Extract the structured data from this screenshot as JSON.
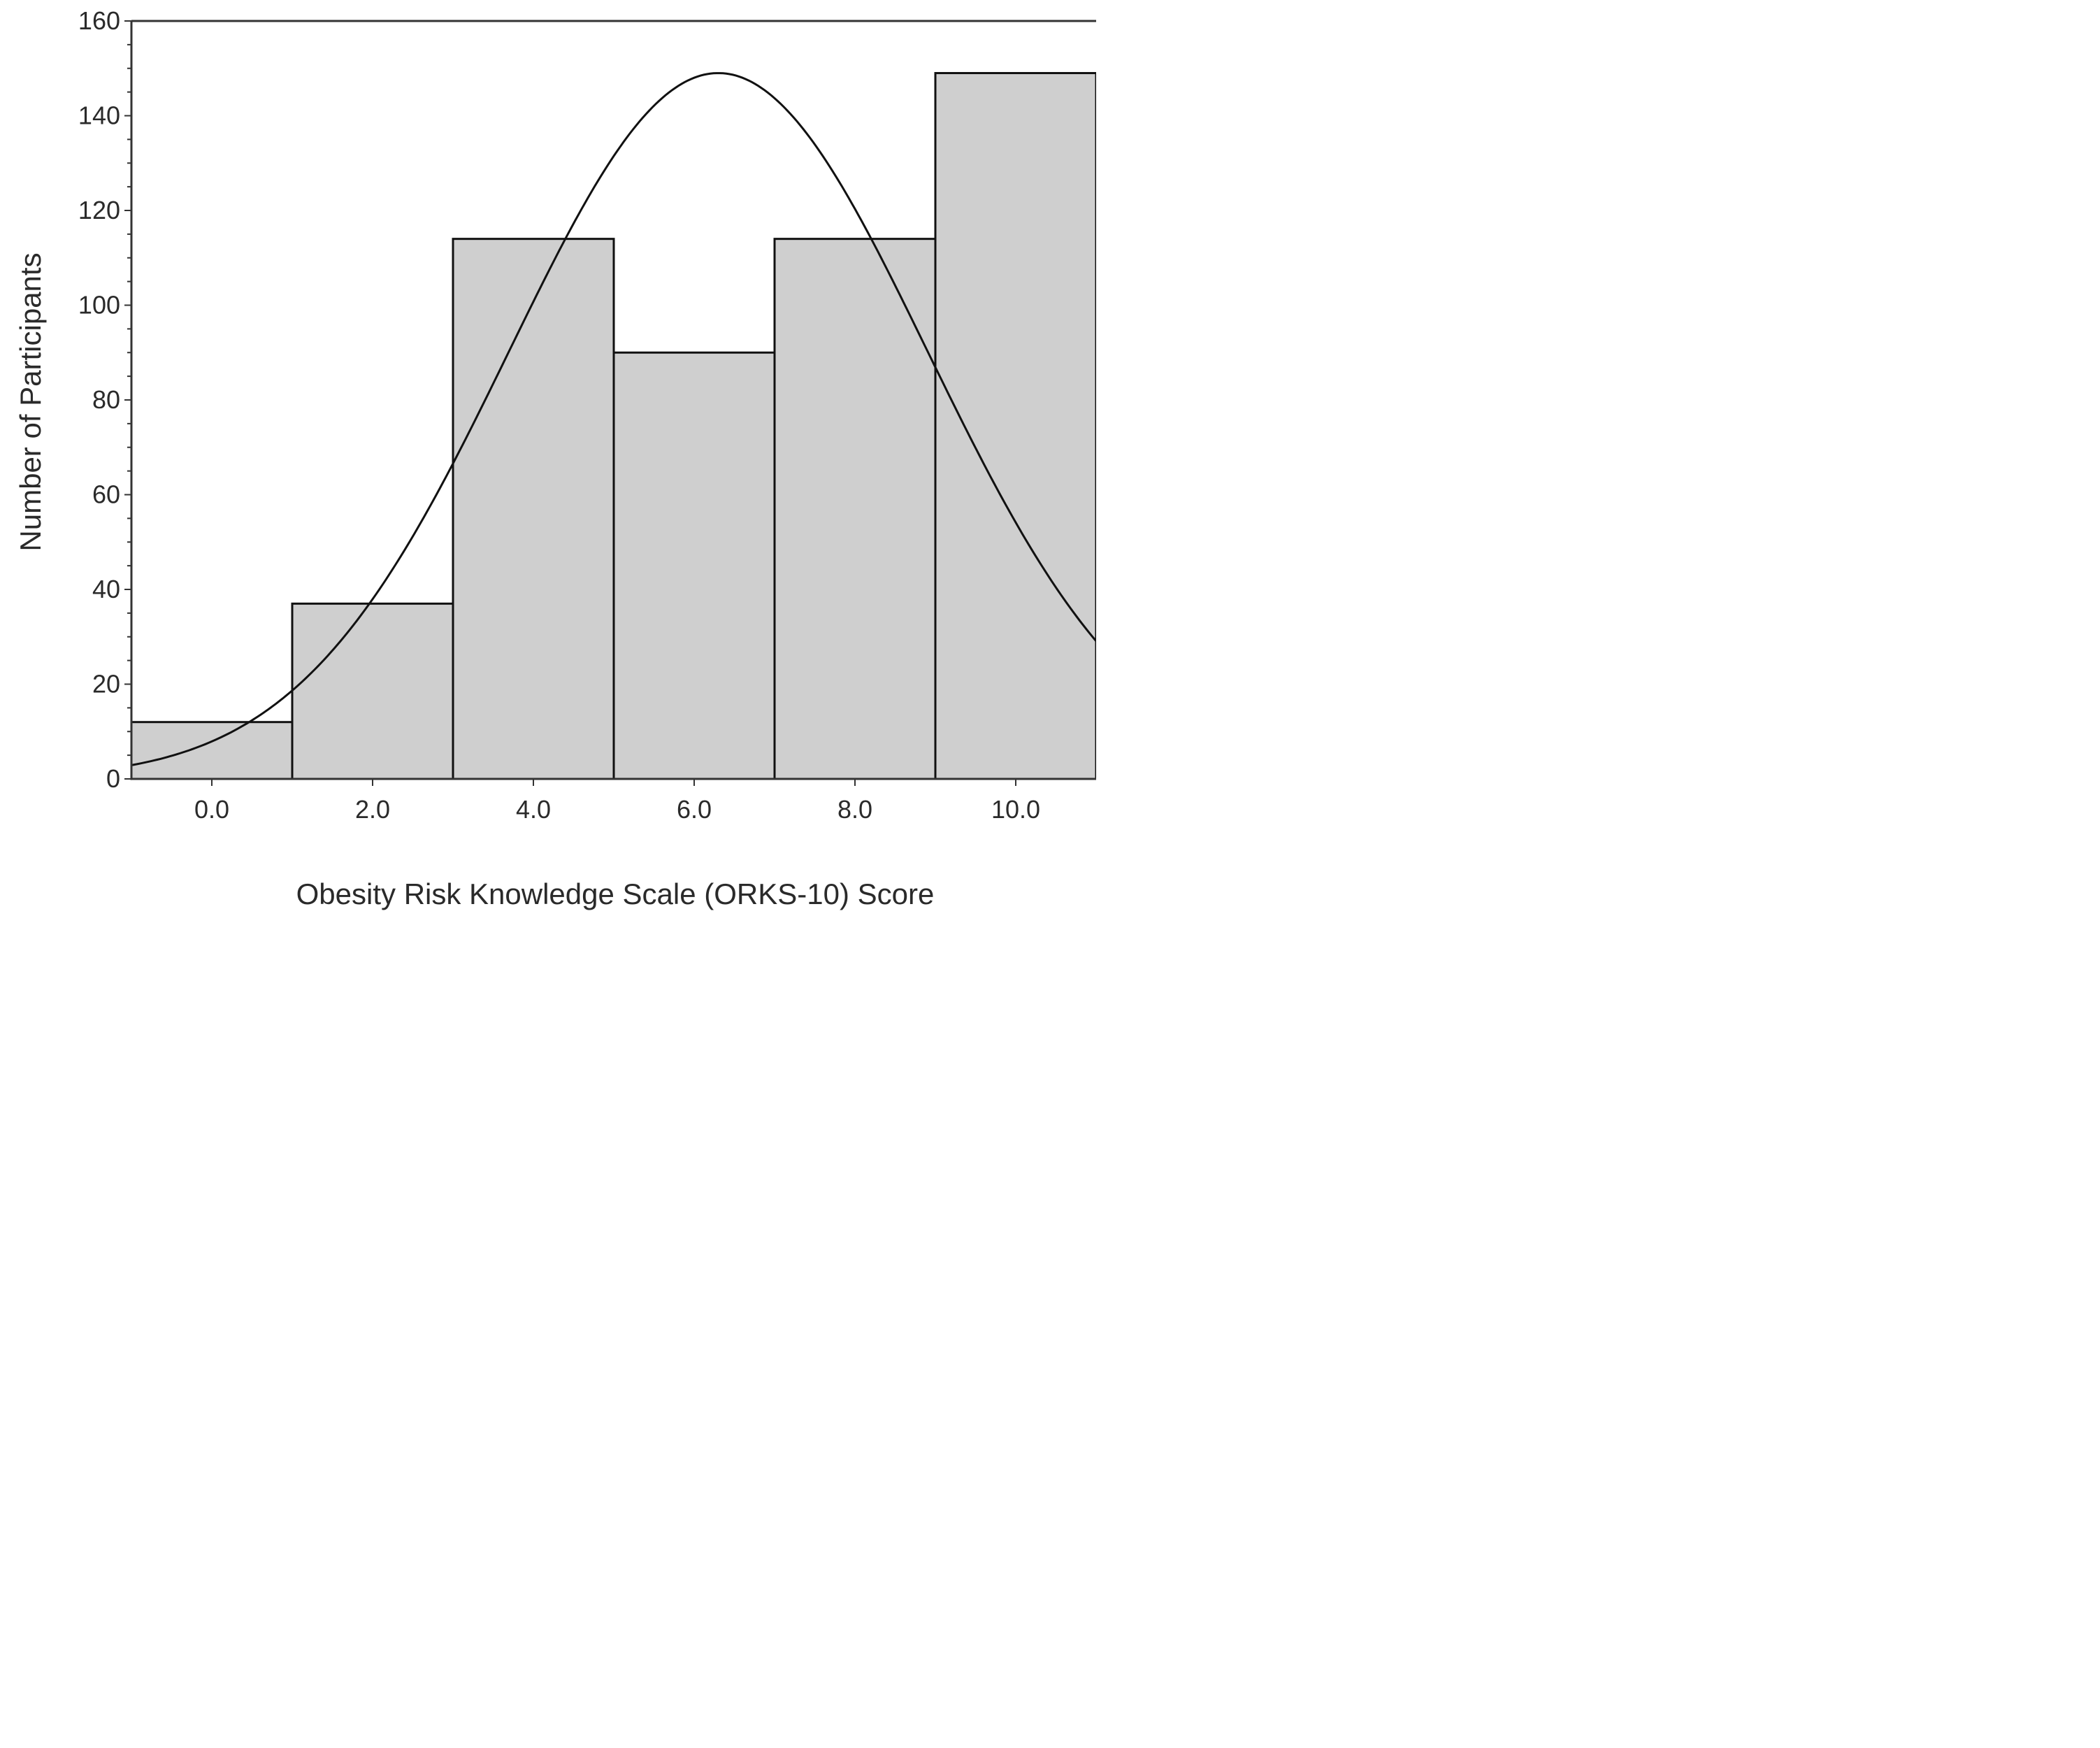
{
  "chart_data": {
    "type": "bar",
    "title": "",
    "xlabel": "Obesity Risk Knowledge Scale (ORKS-10) Score",
    "ylabel": "Number of Participants",
    "x_ticks": [
      "0.0",
      "2.0",
      "4.0",
      "6.0",
      "8.0",
      "10.0"
    ],
    "y_ticks": [
      "0",
      "20",
      "40",
      "60",
      "80",
      "100",
      "120",
      "140",
      "160"
    ],
    "xlim": [
      -1,
      11
    ],
    "ylim": [
      0,
      160
    ],
    "bin_width": 2,
    "categories": [
      "0.0",
      "2.0",
      "4.0",
      "6.0",
      "8.0",
      "10.0"
    ],
    "values": [
      12,
      37,
      114,
      90,
      114,
      149
    ],
    "normal_curve": {
      "mean": 6.3,
      "peak": 149,
      "sd": 2.6
    },
    "grid": false,
    "colors": {
      "bar_fill": "#cfcfcf",
      "bar_stroke": "#111111",
      "curve": "#111111",
      "axis": "#333333"
    }
  }
}
